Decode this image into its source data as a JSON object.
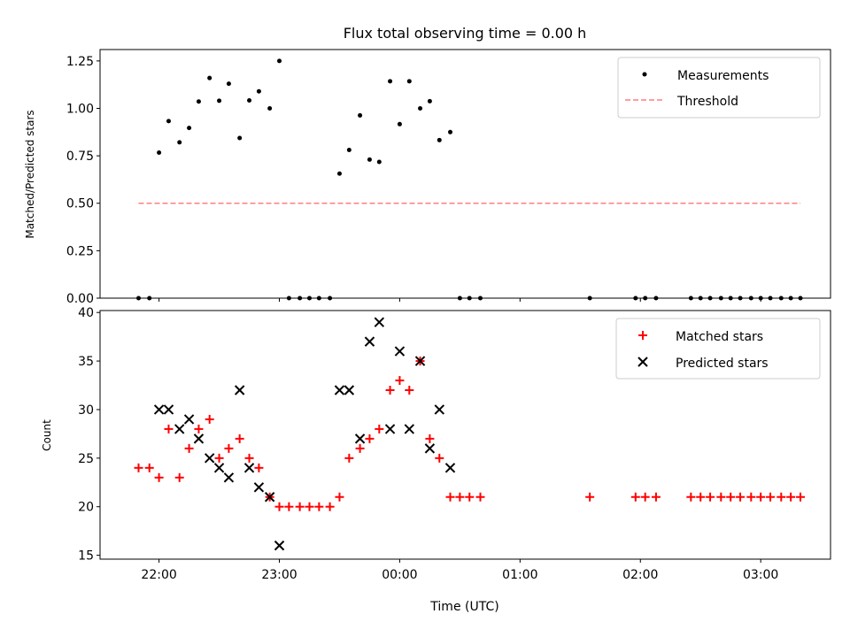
{
  "chart_data": [
    {
      "type": "scatter",
      "title": "Flux total observing time = 0.00 h",
      "xlabel": "",
      "ylabel": "Matched/Predicted stars",
      "xlim": [
        21.51,
        27.58
      ],
      "ylim": [
        0,
        1.31
      ],
      "yticks": [
        0.0,
        0.25,
        0.5,
        0.75,
        1.0,
        1.25
      ],
      "ytick_labels": [
        "0.00",
        "0.25",
        "0.50",
        "0.75",
        "1.00",
        "1.25"
      ],
      "xticks": [
        22,
        23,
        24,
        25,
        26,
        27
      ],
      "xtick_labels": [
        "",
        "",
        "",
        "",
        "",
        ""
      ],
      "legend": {
        "location": "top-right",
        "entries": [
          "Measurements",
          "Threshold"
        ]
      },
      "colors": {
        "measurements": "#000000",
        "threshold": "#ff7f7f"
      },
      "threshold": {
        "name": "Threshold",
        "x": [
          21.83,
          27.33
        ],
        "y": 0.5
      },
      "series": [
        {
          "name": "Measurements",
          "marker": "dot",
          "points": [
            [
              21.83,
              0.0
            ],
            [
              21.92,
              0.0
            ],
            [
              22.0,
              0.767
            ],
            [
              22.08,
              0.933
            ],
            [
              22.17,
              0.821
            ],
            [
              22.25,
              0.897
            ],
            [
              22.33,
              1.036
            ],
            [
              22.42,
              1.16
            ],
            [
              22.5,
              1.04
            ],
            [
              22.58,
              1.13
            ],
            [
              22.67,
              0.844
            ],
            [
              22.75,
              1.042
            ],
            [
              22.83,
              1.09
            ],
            [
              22.92,
              1.0
            ],
            [
              23.0,
              1.25
            ],
            [
              23.08,
              0.0
            ],
            [
              23.17,
              0.0
            ],
            [
              23.25,
              0.0
            ],
            [
              23.33,
              0.0
            ],
            [
              23.42,
              0.0
            ],
            [
              23.5,
              0.656
            ],
            [
              23.58,
              0.781
            ],
            [
              23.67,
              0.963
            ],
            [
              23.75,
              0.73
            ],
            [
              23.83,
              0.718
            ],
            [
              23.92,
              1.143
            ],
            [
              24.0,
              0.917
            ],
            [
              24.08,
              1.143
            ],
            [
              24.17,
              1.0
            ],
            [
              24.25,
              1.038
            ],
            [
              24.33,
              0.833
            ],
            [
              24.42,
              0.875
            ],
            [
              24.5,
              0.0
            ],
            [
              24.58,
              0.0
            ],
            [
              24.67,
              0.0
            ],
            [
              25.58,
              0.0
            ],
            [
              25.96,
              0.0
            ],
            [
              26.04,
              0.0
            ],
            [
              26.13,
              0.0
            ],
            [
              26.42,
              0.0
            ],
            [
              26.5,
              0.0
            ],
            [
              26.58,
              0.0
            ],
            [
              26.67,
              0.0
            ],
            [
              26.75,
              0.0
            ],
            [
              26.83,
              0.0
            ],
            [
              26.92,
              0.0
            ],
            [
              27.0,
              0.0
            ],
            [
              27.08,
              0.0
            ],
            [
              27.17,
              0.0
            ],
            [
              27.25,
              0.0
            ],
            [
              27.33,
              0.0
            ]
          ]
        }
      ]
    },
    {
      "type": "scatter",
      "title": "",
      "xlabel": "Time (UTC)",
      "ylabel": "Count",
      "xlim": [
        21.51,
        27.58
      ],
      "ylim": [
        14.6,
        40.2
      ],
      "yticks": [
        15,
        20,
        25,
        30,
        35,
        40
      ],
      "ytick_labels": [
        "15",
        "20",
        "25",
        "30",
        "35",
        "40"
      ],
      "xticks": [
        22,
        23,
        24,
        25,
        26,
        27
      ],
      "xtick_labels": [
        "22:00",
        "23:00",
        "00:00",
        "01:00",
        "02:00",
        "03:00"
      ],
      "legend": {
        "location": "top-right",
        "entries": [
          "Matched stars",
          "Predicted stars"
        ]
      },
      "colors": {
        "matched": "#ff0000",
        "predicted": "#000000"
      },
      "series": [
        {
          "name": "Matched stars",
          "marker": "plus",
          "points": [
            [
              21.83,
              24
            ],
            [
              21.92,
              24
            ],
            [
              22.0,
              23
            ],
            [
              22.08,
              28
            ],
            [
              22.17,
              23
            ],
            [
              22.25,
              26
            ],
            [
              22.33,
              28
            ],
            [
              22.42,
              29
            ],
            [
              22.5,
              25
            ],
            [
              22.58,
              26
            ],
            [
              22.67,
              27
            ],
            [
              22.75,
              25
            ],
            [
              22.83,
              24
            ],
            [
              22.92,
              21
            ],
            [
              23.0,
              20
            ],
            [
              23.08,
              20
            ],
            [
              23.17,
              20
            ],
            [
              23.25,
              20
            ],
            [
              23.33,
              20
            ],
            [
              23.42,
              20
            ],
            [
              23.5,
              21
            ],
            [
              23.58,
              25
            ],
            [
              23.67,
              26
            ],
            [
              23.75,
              27
            ],
            [
              23.83,
              28
            ],
            [
              23.92,
              32
            ],
            [
              24.0,
              33
            ],
            [
              24.08,
              32
            ],
            [
              24.17,
              35
            ],
            [
              24.25,
              27
            ],
            [
              24.33,
              25
            ],
            [
              24.42,
              21
            ],
            [
              24.5,
              21
            ],
            [
              24.58,
              21
            ],
            [
              24.67,
              21
            ],
            [
              25.58,
              21
            ],
            [
              25.96,
              21
            ],
            [
              26.04,
              21
            ],
            [
              26.13,
              21
            ],
            [
              26.42,
              21
            ],
            [
              26.5,
              21
            ],
            [
              26.58,
              21
            ],
            [
              26.67,
              21
            ],
            [
              26.75,
              21
            ],
            [
              26.83,
              21
            ],
            [
              26.92,
              21
            ],
            [
              27.0,
              21
            ],
            [
              27.08,
              21
            ],
            [
              27.17,
              21
            ],
            [
              27.25,
              21
            ],
            [
              27.33,
              21
            ]
          ]
        },
        {
          "name": "Predicted stars",
          "marker": "x",
          "points": [
            [
              22.0,
              30
            ],
            [
              22.08,
              30
            ],
            [
              22.17,
              28
            ],
            [
              22.25,
              29
            ],
            [
              22.33,
              27
            ],
            [
              22.42,
              25
            ],
            [
              22.5,
              24
            ],
            [
              22.58,
              23
            ],
            [
              22.67,
              32
            ],
            [
              22.75,
              24
            ],
            [
              22.83,
              22
            ],
            [
              22.92,
              21
            ],
            [
              23.0,
              16
            ],
            [
              23.5,
              32
            ],
            [
              23.58,
              32
            ],
            [
              23.67,
              27
            ],
            [
              23.75,
              37
            ],
            [
              23.83,
              39
            ],
            [
              23.92,
              28
            ],
            [
              24.0,
              36
            ],
            [
              24.08,
              28
            ],
            [
              24.17,
              35
            ],
            [
              24.25,
              26
            ],
            [
              24.33,
              30
            ],
            [
              24.42,
              24
            ]
          ]
        }
      ]
    }
  ]
}
